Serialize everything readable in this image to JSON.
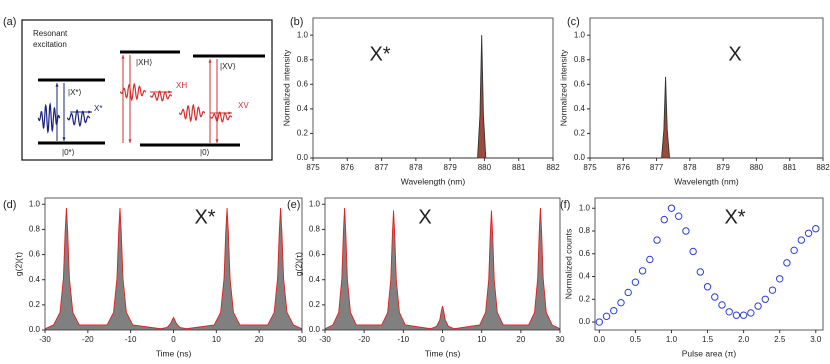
{
  "diagram": {
    "label": "(a)",
    "title_lines": [
      "Resonant",
      "excitation"
    ],
    "x_level": "|X*⟩",
    "zero_star_level": "|0*⟩",
    "x_photon": "X*",
    "xh_level": "|XH⟩",
    "xv_level": "|XV⟩",
    "xh_photon": "XH",
    "xv_photon": "XV",
    "zero_level": "|0⟩"
  },
  "chart_data": [
    {
      "type": "line",
      "label": "(b)",
      "annotation": "X*",
      "x_label": "Wavelength (nm)",
      "y_label": "Normalized intensity",
      "color": "#333333",
      "fill_color": "#9c4a3a",
      "x": [
        875,
        879.8,
        879.87,
        879.92,
        879.97,
        880.04,
        882
      ],
      "values": [
        0,
        0,
        0.35,
        1.0,
        0.35,
        0,
        0
      ],
      "xlim": [
        875,
        882
      ],
      "ylim": [
        0,
        1.14
      ],
      "xticks": [
        875,
        876,
        877,
        878,
        879,
        880,
        881,
        882
      ],
      "yticks": [
        {
          "value": 0,
          "label": "0.0"
        },
        0.2,
        0.4,
        0.6,
        0.8,
        {
          "value": 1,
          "label": "1.0"
        }
      ]
    },
    {
      "type": "line",
      "label": "(c)",
      "annotation": "X",
      "x_label": "Wavelength (nm)",
      "y_label": "Normalized intensity",
      "color": "#333333",
      "fill_color": "#9c4a3a",
      "x": [
        875,
        877.15,
        877.22,
        877.27,
        877.32,
        877.39,
        882
      ],
      "values": [
        0,
        0,
        0.23,
        0.66,
        0.23,
        0,
        0
      ],
      "xlim": [
        875,
        882
      ],
      "ylim": [
        0,
        1.14
      ],
      "xticks": [
        875,
        876,
        877,
        878,
        879,
        880,
        881,
        882
      ],
      "yticks": [
        {
          "value": 0,
          "label": "0.0"
        },
        0.2,
        0.4,
        0.6,
        0.8,
        {
          "value": 1,
          "label": "1.0"
        }
      ]
    },
    {
      "type": "area",
      "label": "(d)",
      "annotation": "X*",
      "x_label": "Time (ns)",
      "y_label": "g(2)(τ)",
      "color": "#e02020",
      "fill_color": "#808080",
      "x": [
        -30,
        -28,
        -26.5,
        -25.7,
        -25.3,
        -25,
        -24.7,
        -24.3,
        -23.5,
        -22,
        -15.5,
        -14,
        -13.2,
        -12.8,
        -12.5,
        -12.2,
        -11.8,
        -11,
        -9.5,
        -3,
        -1.5,
        -0.7,
        -0.3,
        0,
        0.3,
        0.7,
        1.5,
        3,
        9.5,
        11,
        11.8,
        12.2,
        12.5,
        12.8,
        13.2,
        14,
        15.5,
        22,
        23.5,
        24.3,
        24.7,
        25,
        25.3,
        25.7,
        26.5,
        28,
        30
      ],
      "values": [
        0.01,
        0.04,
        0.14,
        0.41,
        0.78,
        0.97,
        0.78,
        0.41,
        0.14,
        0.04,
        0.04,
        0.14,
        0.41,
        0.78,
        0.97,
        0.78,
        0.41,
        0.14,
        0.04,
        0.01,
        0.02,
        0.05,
        0.08,
        0.1,
        0.08,
        0.05,
        0.02,
        0.01,
        0.04,
        0.14,
        0.41,
        0.78,
        0.97,
        0.78,
        0.41,
        0.14,
        0.04,
        0.04,
        0.14,
        0.41,
        0.78,
        0.97,
        0.78,
        0.41,
        0.14,
        0.04,
        0.01
      ],
      "xlim": [
        -30,
        30
      ],
      "ylim": [
        0,
        1.05
      ],
      "xticks": [
        -30,
        -20,
        -10,
        0,
        10,
        20,
        30
      ],
      "yticks": [
        {
          "value": 0,
          "label": "0.0"
        },
        0.2,
        0.4,
        0.6,
        0.8,
        {
          "value": 1,
          "label": "1.0"
        }
      ]
    },
    {
      "type": "area",
      "label": "(e)",
      "annotation": "X",
      "x_label": "Time (ns)",
      "y_label": "g(2)(τ)",
      "color": "#e02020",
      "fill_color": "#808080",
      "x": [
        -30,
        -28,
        -26.5,
        -25.7,
        -25.3,
        -25,
        -24.7,
        -24.3,
        -23.5,
        -22,
        -15.5,
        -14,
        -13.2,
        -12.8,
        -12.5,
        -12.2,
        -11.8,
        -11,
        -9.5,
        -3,
        -1.5,
        -0.7,
        -0.3,
        0,
        0.3,
        0.7,
        1.5,
        3,
        9.5,
        11,
        11.8,
        12.2,
        12.5,
        12.8,
        13.2,
        14,
        15.5,
        22,
        23.5,
        24.3,
        24.7,
        25,
        25.3,
        25.7,
        26.5,
        28,
        30
      ],
      "values": [
        0.01,
        0.04,
        0.14,
        0.41,
        0.78,
        0.97,
        0.78,
        0.41,
        0.14,
        0.04,
        0.04,
        0.14,
        0.4,
        0.76,
        0.95,
        0.76,
        0.4,
        0.14,
        0.04,
        0.01,
        0.03,
        0.08,
        0.15,
        0.19,
        0.15,
        0.08,
        0.03,
        0.01,
        0.04,
        0.14,
        0.4,
        0.76,
        0.95,
        0.76,
        0.4,
        0.14,
        0.04,
        0.04,
        0.14,
        0.41,
        0.78,
        0.97,
        0.78,
        0.41,
        0.14,
        0.04,
        0.01
      ],
      "xlim": [
        -30,
        30
      ],
      "ylim": [
        0,
        1.05
      ],
      "xticks": [
        -30,
        -20,
        -10,
        0,
        10,
        20,
        30
      ],
      "yticks": [
        {
          "value": 0,
          "label": "0.0"
        },
        0.2,
        0.4,
        0.6,
        0.8,
        {
          "value": 1,
          "label": "1.0"
        }
      ]
    },
    {
      "type": "scatter",
      "label": "(f)",
      "annotation": "X*",
      "x_label": "Pulse area (π)",
      "y_label": "Normalized counts",
      "color": "#2b3fd6",
      "x": [
        0,
        0.1,
        0.2,
        0.3,
        0.4,
        0.5,
        0.6,
        0.7,
        0.8,
        0.9,
        1.0,
        1.1,
        1.2,
        1.3,
        1.4,
        1.5,
        1.6,
        1.7,
        1.8,
        1.9,
        2.0,
        2.1,
        2.2,
        2.3,
        2.4,
        2.5,
        2.6,
        2.7,
        2.8,
        2.9,
        3.0
      ],
      "values": [
        0,
        0.05,
        0.1,
        0.17,
        0.26,
        0.35,
        0.45,
        0.55,
        0.72,
        0.9,
        1.0,
        0.93,
        0.8,
        0.62,
        0.44,
        0.31,
        0.22,
        0.15,
        0.09,
        0.06,
        0.06,
        0.08,
        0.14,
        0.2,
        0.28,
        0.38,
        0.52,
        0.63,
        0.72,
        0.78,
        0.82
      ],
      "xlim": [
        -0.06,
        3.1
      ],
      "ylim": [
        -0.07,
        1.09
      ],
      "xticks": [
        {
          "value": 0,
          "label": "0.0"
        },
        0.5,
        {
          "value": 1,
          "label": "1.0"
        },
        1.5,
        {
          "value": 2,
          "label": "2.0"
        },
        2.5,
        {
          "value": 3,
          "label": "3.0"
        }
      ],
      "yticks": [
        {
          "value": 0,
          "label": "0.0"
        },
        0.2,
        0.4,
        0.6,
        0.8,
        {
          "value": 1,
          "label": "1.0"
        }
      ]
    }
  ]
}
